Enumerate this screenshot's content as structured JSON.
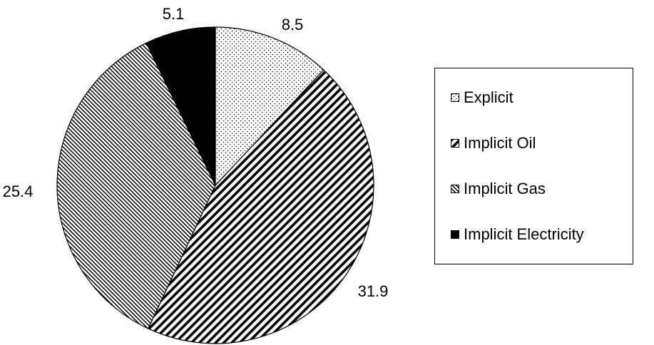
{
  "chart_data": {
    "type": "pie",
    "title": "",
    "slices": [
      {
        "label": "Explicit",
        "value": 8.5,
        "pattern": "dots",
        "data_label": "8.5"
      },
      {
        "label": "Implicit Oil",
        "value": 31.9,
        "pattern": "wide-diagonal",
        "data_label": "31.9"
      },
      {
        "label": "Implicit Gas",
        "value": 25.4,
        "pattern": "narrow-diagonal",
        "data_label": "25.4"
      },
      {
        "label": "Implicit Electricity",
        "value": 5.1,
        "pattern": "solid",
        "data_label": "5.1"
      }
    ],
    "start_angle": "12 o'clock",
    "direction": "clockwise",
    "legend_position": "right",
    "colors": {
      "fill": "#000000",
      "background": "#ffffff"
    }
  }
}
